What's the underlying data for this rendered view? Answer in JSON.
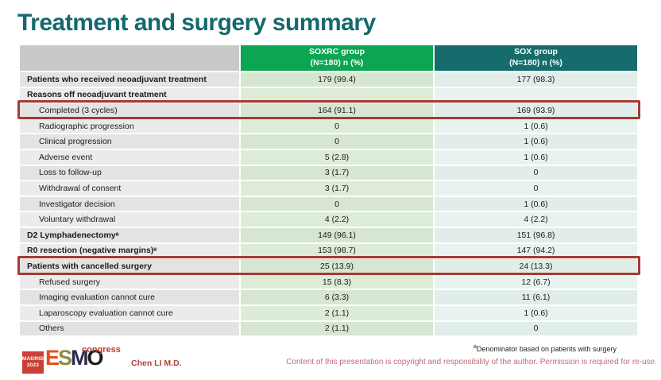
{
  "slide": {
    "title": "Treatment and surgery summary",
    "colors": {
      "title_teal": "#15696d",
      "soxrc_header_green": "#0ca551",
      "sox_header_teal": "#166c6d",
      "highlight_box_red": "#a33b34",
      "presenter_red": "#b5413a",
      "copyright_pink": "#c06a76"
    }
  },
  "table": {
    "columns": [
      {
        "name": "",
        "sub": ""
      },
      {
        "name": "SOXRC group",
        "sub": "(N=180)  n (%)"
      },
      {
        "name": "SOX group",
        "sub": "(N=180)  n (%)"
      }
    ],
    "rows": [
      {
        "label": "Patients who received neoadjuvant treatment",
        "soxrc": "179 (99.4)",
        "sox": "177 (98.3)",
        "bold": true,
        "indent": false,
        "highlight": false
      },
      {
        "label": "Reasons off neoadjuvant treatment",
        "soxrc": "",
        "sox": "",
        "bold": true,
        "indent": false,
        "highlight": false
      },
      {
        "label": "Completed (3 cycles)",
        "soxrc": "164 (91.1)",
        "sox": "169 (93.9)",
        "bold": false,
        "indent": true,
        "highlight": true
      },
      {
        "label": "Radiographic progression",
        "soxrc": "0",
        "sox": "1 (0.6)",
        "bold": false,
        "indent": true,
        "highlight": false
      },
      {
        "label": "Clinical progression",
        "soxrc": "0",
        "sox": "1 (0.6)",
        "bold": false,
        "indent": true,
        "highlight": false
      },
      {
        "label": "Adverse event",
        "soxrc": "5 (2.8)",
        "sox": "1 (0.6)",
        "bold": false,
        "indent": true,
        "highlight": false
      },
      {
        "label": "Loss to follow-up",
        "soxrc": "3 (1.7)",
        "sox": "0",
        "bold": false,
        "indent": true,
        "highlight": false
      },
      {
        "label": "Withdrawal of consent",
        "soxrc": "3 (1.7)",
        "sox": "0",
        "bold": false,
        "indent": true,
        "highlight": false
      },
      {
        "label": "Investigator decision",
        "soxrc": "0",
        "sox": "1 (0.6)",
        "bold": false,
        "indent": true,
        "highlight": false
      },
      {
        "label": "Voluntary withdrawal",
        "soxrc": "4 (2.2)",
        "sox": "4 (2.2)",
        "bold": false,
        "indent": true,
        "highlight": false
      },
      {
        "label": "D2 Lymphadenectomyᵃ",
        "soxrc": "149 (96.1)",
        "sox": "151 (96.8)",
        "bold": true,
        "indent": false,
        "highlight": false
      },
      {
        "label": "R0 resection (negative margins)ᵃ",
        "soxrc": "153 (98.7)",
        "sox": "147 (94.2)",
        "bold": true,
        "indent": false,
        "highlight": false
      },
      {
        "label": "Patients with cancelled surgery",
        "soxrc": "25 (13.9)",
        "sox": "24 (13.3)",
        "bold": true,
        "indent": false,
        "highlight": true
      },
      {
        "label": "Refused surgery",
        "soxrc": "15 (8.3)",
        "sox": "12 (6.7)",
        "bold": false,
        "indent": true,
        "highlight": false
      },
      {
        "label": "Imaging evaluation cannot cure",
        "soxrc": "6 (3.3)",
        "sox": "11 (6.1)",
        "bold": false,
        "indent": true,
        "highlight": false
      },
      {
        "label": "Laparoscopy evaluation cannot cure",
        "soxrc": "2 (1.1)",
        "sox": "1 (0.6)",
        "bold": false,
        "indent": true,
        "highlight": false
      },
      {
        "label": "Others",
        "soxrc": "2 (1.1)",
        "sox": "0",
        "bold": false,
        "indent": true,
        "highlight": false
      }
    ]
  },
  "footer": {
    "footnote_marker": "a",
    "footnote_text": "Denominator based on patients with surgery",
    "presenter": "Chen LI M.D.",
    "copyright": "Content of this presentation is copyright and responsibility of the author. Permission is required for re-use.",
    "logo": {
      "badge_line1": "MADRID",
      "badge_line2": "2023",
      "letters": [
        "E",
        "S",
        "M",
        "O"
      ],
      "letter_colors": [
        "#e4501e",
        "#8d8f3f",
        "#2b2a50",
        "#1c1c1c"
      ],
      "congress": "congress"
    }
  }
}
